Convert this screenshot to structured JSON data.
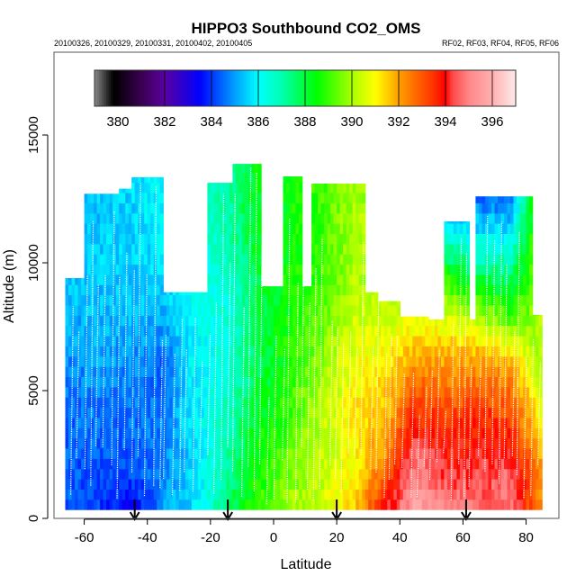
{
  "chart_data": {
    "type": "heatmap",
    "title": "HIPPO3 Southbound CO2_OMS",
    "subtitle_left": "20100326, 20100329, 20100331, 20100402, 20100405",
    "subtitle_right": "RF02, RF03, RF04, RF05, RF06",
    "xlabel": "Latitude",
    "ylabel": "Altitude (m)",
    "xlim": [
      -70,
      90
    ],
    "ylim": [
      0,
      18200
    ],
    "xticks": [
      -60,
      -40,
      -20,
      0,
      20,
      40,
      60,
      80
    ],
    "yticks": [
      0,
      5000,
      10000,
      15000
    ],
    "colorbar": {
      "range": [
        379,
        397
      ],
      "ticks": [
        380,
        382,
        384,
        386,
        388,
        390,
        392,
        394,
        396
      ],
      "stops": [
        [
          379,
          "#8a8a8a"
        ],
        [
          379.8,
          "#000000"
        ],
        [
          381,
          "#3a0050"
        ],
        [
          382,
          "#5a00a0"
        ],
        [
          383.5,
          "#0000ff"
        ],
        [
          385,
          "#00a0ff"
        ],
        [
          386,
          "#00ffff"
        ],
        [
          387,
          "#00ffb0"
        ],
        [
          388.5,
          "#00ff00"
        ],
        [
          390,
          "#a8ff00"
        ],
        [
          391,
          "#ffff00"
        ],
        [
          392,
          "#ffa000"
        ],
        [
          393.5,
          "#ff3000"
        ],
        [
          394,
          "#ff0000"
        ],
        [
          394.3,
          "#ff4848"
        ],
        [
          395,
          "#ff8888"
        ],
        [
          396,
          "#ffb0b0"
        ],
        [
          397,
          "#ffeaea"
        ]
      ]
    },
    "grid_lats": [
      -65,
      -55,
      -45,
      -35,
      -25,
      -15,
      -5,
      5,
      15,
      25,
      35,
      45,
      55,
      65,
      75,
      85
    ],
    "grid_alts": [
      0,
      2000,
      4000,
      6000,
      8000,
      10000,
      12000,
      14000
    ],
    "values_ppm": [
      [
        384.5,
        384.3,
        384.5,
        384.8,
        385.2,
        385.5,
        385.5,
        385.5
      ],
      [
        384.0,
        384.3,
        384.6,
        385.0,
        385.3,
        385.5,
        385.4,
        385.4
      ],
      [
        383.0,
        384.2,
        384.6,
        384.8,
        385.3,
        385.5,
        385.6,
        385.6
      ],
      [
        385.0,
        384.8,
        384.7,
        384.4,
        385.2,
        385.8,
        386.0,
        386.0
      ],
      [
        385.6,
        385.6,
        385.8,
        386.0,
        386.1,
        386.3,
        386.5,
        386.5
      ],
      [
        387.6,
        387.2,
        386.8,
        386.4,
        386.3,
        386.6,
        387.0,
        387.0
      ],
      [
        389.0,
        388.6,
        388.2,
        387.8,
        387.8,
        388.0,
        388.4,
        388.4
      ],
      [
        390.0,
        389.6,
        389.0,
        388.8,
        388.6,
        388.5,
        388.5,
        388.5
      ],
      [
        390.6,
        390.2,
        390.2,
        389.8,
        389.3,
        389.0,
        389.0,
        389.0
      ],
      [
        391.5,
        391.0,
        391.2,
        390.8,
        390.3,
        390.0,
        390.0,
        390.0
      ],
      [
        394.2,
        392.5,
        391.6,
        391.2,
        390.4,
        390.0,
        390.0,
        390.0
      ],
      [
        396.0,
        395.0,
        393.6,
        392.2,
        390.5,
        390.0,
        390.0,
        390.0
      ],
      [
        395.0,
        394.2,
        393.2,
        392.0,
        390.6,
        388.0,
        385.2,
        385.0
      ],
      [
        394.8,
        394.2,
        393.6,
        392.2,
        390.0,
        387.0,
        385.0,
        383.5
      ],
      [
        395.0,
        394.6,
        393.2,
        392.0,
        389.0,
        387.0,
        385.0,
        383.6
      ],
      [
        392.0,
        392.0,
        391.0,
        390.0,
        390.0,
        390.0,
        390.0,
        390.0
      ]
    ],
    "ceiling_m": [
      [
        -66,
        9400
      ],
      [
        -61,
        9400
      ],
      [
        -60,
        12700
      ],
      [
        -49,
        12900
      ],
      [
        -45,
        13350
      ],
      [
        -36,
        13350
      ],
      [
        -35,
        8850
      ],
      [
        -21,
        8850
      ],
      [
        -21,
        13130
      ],
      [
        -15,
        13130
      ],
      [
        -13,
        13870
      ],
      [
        -4,
        13870
      ],
      [
        -4,
        9080
      ],
      [
        3,
        9080
      ],
      [
        3,
        13380
      ],
      [
        9,
        13380
      ],
      [
        9,
        9080
      ],
      [
        12,
        9080
      ],
      [
        12,
        13100
      ],
      [
        29,
        13100
      ],
      [
        29,
        8850
      ],
      [
        33,
        8850
      ],
      [
        33,
        8500
      ],
      [
        40,
        8500
      ],
      [
        40,
        7900
      ],
      [
        49,
        7900
      ],
      [
        49,
        7780
      ],
      [
        54,
        7780
      ],
      [
        54,
        11620
      ],
      [
        62,
        11620
      ],
      [
        62,
        7780
      ],
      [
        64,
        7780
      ],
      [
        64,
        12600
      ],
      [
        82,
        12600
      ],
      [
        82,
        7960
      ],
      [
        85,
        7960
      ]
    ],
    "floor_m": 350,
    "flight_arrows_lat": [
      -44,
      -14.5,
      20,
      61
    ]
  }
}
